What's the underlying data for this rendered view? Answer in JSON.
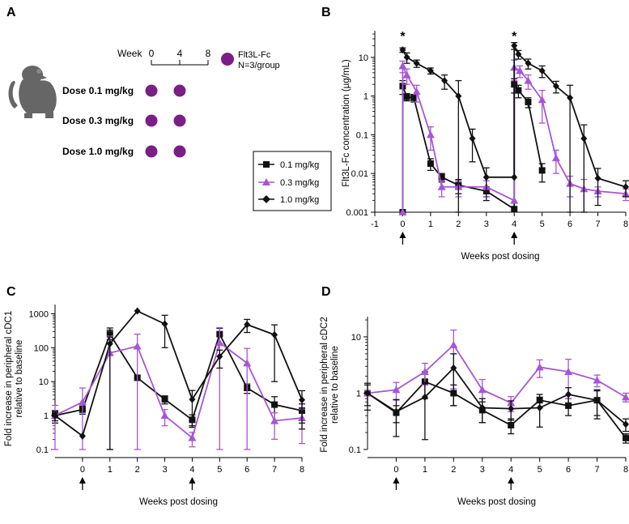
{
  "colors": {
    "black": "#111111",
    "purple": "#a855d6",
    "dot": "#7b1e86",
    "monkey": "#666666"
  },
  "panel_a": {
    "letter": "A",
    "timeline_label": "Week",
    "timeline_ticks": [
      "0",
      "4",
      "8"
    ],
    "legend_line1": "Flt3L-Fc",
    "legend_line2": "N=3/group",
    "dose_labels": [
      "Dose 0.1 mg/kg",
      "Dose 0.3 mg/kg",
      "Dose 1.0 mg/kg"
    ],
    "icon": "monkey-icon"
  },
  "panel_b": {
    "letter": "B"
  },
  "panel_c": {
    "letter": "C"
  },
  "panel_d": {
    "letter": "D"
  },
  "legend": [
    "0.1 mg/kg",
    "0.3 mg/kg",
    "1.0 mg/kg"
  ],
  "chart_data": [
    {
      "id": "B",
      "type": "line",
      "yscale": "log",
      "ylabel": "Flt3L-Fc concentration (µg/mL)",
      "xlabel": "Weeks post dosing",
      "xlim": [
        -1,
        8
      ],
      "ylim": [
        0.001,
        40
      ],
      "xticks": [
        "-1",
        "0",
        "1",
        "2",
        "3",
        "4",
        "5",
        "6",
        "7",
        "8"
      ],
      "yticks": [
        "0.001",
        "0.01",
        "0.1",
        "1",
        "10"
      ],
      "annotations": [
        "*",
        "*"
      ],
      "dosing_weeks": [
        0,
        4
      ],
      "series": [
        {
          "name": "0.1 mg/kg",
          "marker": "square",
          "color": "black",
          "points": [
            [
              0,
              0.001
            ],
            [
              0,
              1.8
            ],
            [
              0.15,
              0.95
            ],
            [
              0.4,
              0.9
            ],
            [
              1,
              0.018
            ],
            [
              1.4,
              0.008
            ],
            [
              2,
              0.005
            ],
            [
              3,
              0.0035
            ],
            [
              4,
              0.0012
            ],
            [
              4,
              2.0
            ],
            [
              4.15,
              1.4
            ],
            [
              4.5,
              0.7
            ],
            [
              5,
              0.012
            ]
          ],
          "err": [
            0,
            0.7,
            0.2,
            0.2,
            0.006,
            0.002,
            0.002,
            0.001,
            0,
            0.8,
            0.5,
            0.2,
            0.006
          ]
        },
        {
          "name": "0.3 mg/kg",
          "marker": "triangle",
          "color": "purple",
          "points": [
            [
              0,
              0.001
            ],
            [
              0,
              6
            ],
            [
              0.15,
              3.5
            ],
            [
              0.5,
              1.3
            ],
            [
              1,
              0.1
            ],
            [
              1.4,
              0.0045
            ],
            [
              2,
              0.0045
            ],
            [
              3,
              0.0045
            ],
            [
              4,
              0.002
            ],
            [
              4,
              5.5
            ],
            [
              4.2,
              4.5
            ],
            [
              4.5,
              2.5
            ],
            [
              5,
              0.8
            ],
            [
              5.5,
              0.025
            ],
            [
              6,
              0.0055
            ],
            [
              6.5,
              0.004
            ],
            [
              7,
              0.0035
            ],
            [
              8,
              0.003
            ]
          ],
          "err": [
            0,
            2,
            1.5,
            0.6,
            0.06,
            0.002,
            0.002,
            0.002,
            0,
            3,
            1.5,
            1,
            0.6,
            0.015,
            0.003,
            0.003,
            0.001,
            0.001
          ]
        },
        {
          "name": "1.0 mg/kg",
          "marker": "diamond",
          "color": "black",
          "points": [
            [
              0,
              15.5
            ],
            [
              0.15,
              10
            ],
            [
              0.5,
              7
            ],
            [
              1,
              4.5
            ],
            [
              1.5,
              2.5
            ],
            [
              2,
              1.0
            ],
            [
              2.5,
              0.08
            ],
            [
              3,
              0.008
            ],
            [
              4,
              0.008
            ],
            [
              4,
              20
            ],
            [
              4.15,
              12
            ],
            [
              4.5,
              7
            ],
            [
              5,
              4.5
            ],
            [
              5.5,
              1.8
            ],
            [
              6,
              0.9
            ],
            [
              6.5,
              0.08
            ],
            [
              7,
              0.0075
            ],
            [
              8,
              0.0045
            ]
          ],
          "err": [
            2,
            3,
            1.5,
            0.8,
            1,
            1.5,
            0.06,
            0.006,
            0,
            4,
            3,
            2,
            1.5,
            0.6,
            1,
            0.1,
            0.006,
            0.002
          ]
        }
      ]
    },
    {
      "id": "C",
      "type": "line",
      "yscale": "log",
      "ylabel": "Fold increase in peripheral cDC1 relative to baseline",
      "xlabel": "Weeks post dosing",
      "xlim": [
        -1,
        8
      ],
      "ylim": [
        0.1,
        1500
      ],
      "xticks": [
        "0",
        "1",
        "2",
        "3",
        "4",
        "5",
        "6",
        "7",
        "8"
      ],
      "yticks": [
        "0.1",
        "1",
        "10",
        "100",
        "1000"
      ],
      "dosing_weeks": [
        0,
        4
      ],
      "series": [
        {
          "name": "0.1 mg/kg",
          "marker": "square",
          "color": "black",
          "points": [
            [
              -1,
              1
            ],
            [
              0,
              1.5
            ],
            [
              1,
              250
            ],
            [
              2,
              13
            ],
            [
              3,
              3
            ],
            [
              4,
              0.75
            ],
            [
              5,
              250
            ],
            [
              6,
              6.5
            ],
            [
              7,
              2.1
            ],
            [
              8,
              1.4
            ]
          ],
          "err": [
            0.4,
            0.4,
            80,
            2,
            0.8,
            0.3,
            120,
            2,
            1.5,
            0.8
          ]
        },
        {
          "name": "0.3 mg/kg",
          "marker": "triangle",
          "color": "purple",
          "points": [
            [
              -1,
              1
            ],
            [
              0,
              2.5
            ],
            [
              1,
              70
            ],
            [
              2,
              110
            ],
            [
              3,
              1
            ],
            [
              4,
              0.22
            ],
            [
              5,
              140
            ],
            [
              6,
              35
            ],
            [
              7,
              0.7
            ],
            [
              8,
              0.85
            ]
          ],
          "err": [
            1,
            4,
            150,
            140,
            0.5,
            0.1,
            250,
            60,
            0.5,
            0.7
          ]
        },
        {
          "name": "1.0 mg/kg",
          "marker": "diamond",
          "color": "black",
          "points": [
            [
              -1,
              1
            ],
            [
              0,
              0.25
            ],
            [
              1,
              130
            ],
            [
              2,
              1200
            ],
            [
              3,
              500
            ],
            [
              4,
              3
            ],
            [
              5,
              55
            ],
            [
              6,
              480
            ],
            [
              7,
              240
            ],
            [
              8,
              2.9
            ]
          ],
          "err": [
            0.3,
            0,
            250,
            0,
            400,
            2.5,
            30,
            200,
            230,
            2.5
          ]
        }
      ]
    },
    {
      "id": "D",
      "type": "line",
      "yscale": "log",
      "ylabel": "Fold increase in peripheral cDC2 relative to baseline",
      "xlabel": "Weeks post dosing",
      "xlim": [
        -1,
        8
      ],
      "ylim": [
        0.1,
        20
      ],
      "xticks": [
        "0",
        "1",
        "2",
        "3",
        "4",
        "5",
        "6",
        "7",
        "8"
      ],
      "yticks": [
        "0.1",
        "1",
        "10"
      ],
      "dosing_weeks": [
        0,
        4
      ],
      "series": [
        {
          "name": "0.1 mg/kg",
          "marker": "square",
          "color": "black",
          "points": [
            [
              -1,
              1
            ],
            [
              0,
              0.45
            ],
            [
              1,
              1.6
            ],
            [
              2,
              1.0
            ],
            [
              3,
              0.5
            ],
            [
              4,
              0.27
            ],
            [
              5,
              0.75
            ],
            [
              6,
              0.6
            ],
            [
              7,
              0.75
            ],
            [
              8,
              0.16
            ]
          ],
          "err": [
            0.4,
            0.15,
            0.8,
            0.4,
            0.2,
            0.08,
            0.2,
            0.2,
            0.35,
            0.03
          ]
        },
        {
          "name": "0.3 mg/kg",
          "marker": "triangle",
          "color": "purple",
          "points": [
            [
              -1,
              1
            ],
            [
              0,
              1.15
            ],
            [
              1,
              2.4
            ],
            [
              2,
              7.2
            ],
            [
              3,
              1.15
            ],
            [
              4,
              0.67
            ],
            [
              5,
              2.9
            ],
            [
              6,
              2.4
            ],
            [
              7,
              1.7
            ],
            [
              8,
              0.85
            ]
          ],
          "err": [
            0.1,
            0.4,
            1,
            6,
            0.6,
            0.2,
            1,
            1.6,
            0.4,
            0.15
          ]
        },
        {
          "name": "1.0 mg/kg",
          "marker": "diamond",
          "color": "black",
          "points": [
            [
              -1,
              1
            ],
            [
              0,
              0.47
            ],
            [
              1,
              0.85
            ],
            [
              2,
              2.8
            ],
            [
              3,
              0.55
            ],
            [
              4,
              0.53
            ],
            [
              5,
              0.55
            ],
            [
              6,
              0.95
            ],
            [
              7,
              0.75
            ],
            [
              8,
              0.28
            ]
          ],
          "err": [
            0.5,
            0.3,
            0.7,
            2.2,
            0.25,
            0.2,
            0.3,
            0.3,
            0.4,
            0.07
          ]
        }
      ]
    }
  ]
}
